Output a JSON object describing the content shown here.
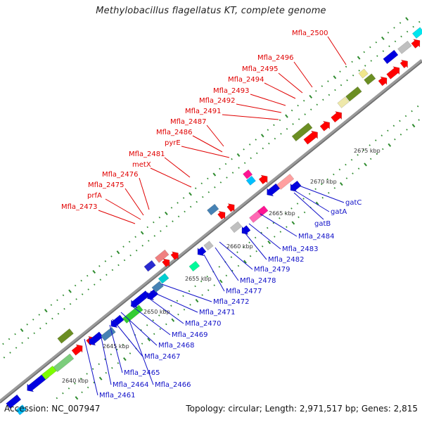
{
  "title": "Methylobacillus flagellatus KT, complete genome",
  "footer": {
    "accession": "Accession: NC_007947",
    "summary": "Topology: circular; Length: 2,971,517 bp; Genes: 2,815"
  },
  "colors": {
    "backbone": "#8a8a8a",
    "forward_gene": "#ff0000",
    "reverse_gene": "#0000e0",
    "rna": "#6b8e23",
    "other": "#c0c0c0",
    "label_forward": "#e00000",
    "label_reverse": "#1010c8",
    "tick": "#2e8b2e"
  },
  "kbp_marks": [
    "2640 kbp",
    "2645 kbp",
    "2650 kbp",
    "2655 kbp",
    "2660 kbp",
    "2665 kbp",
    "2670 kbp",
    "2675 kbp"
  ],
  "labels_forward": [
    "Mfla_2500",
    "Mfla_2496",
    "Mfla_2495",
    "Mfla_2494",
    "Mfla_2493",
    "Mfla_2492",
    "Mfla_2491",
    "Mfla_2487",
    "Mfla_2486",
    "pyrE",
    "Mfla_2481",
    "metX",
    "Mfla_2476",
    "Mfla_2475",
    "prfA",
    "Mfla_2473"
  ],
  "labels_reverse": [
    "gatC",
    "gatA",
    "gatB",
    "Mfla_2484",
    "Mfla_2483",
    "Mfla_2482",
    "Mfla_2479",
    "Mfla_2478",
    "Mfla_2477",
    "Mfla_2472",
    "Mfla_2471",
    "Mfla_2470",
    "Mfla_2469",
    "Mfla_2468",
    "Mfla_2467",
    "Mfla_2466",
    "Mfla_2465",
    "Mfla_2464",
    "Mfla_2461"
  ]
}
